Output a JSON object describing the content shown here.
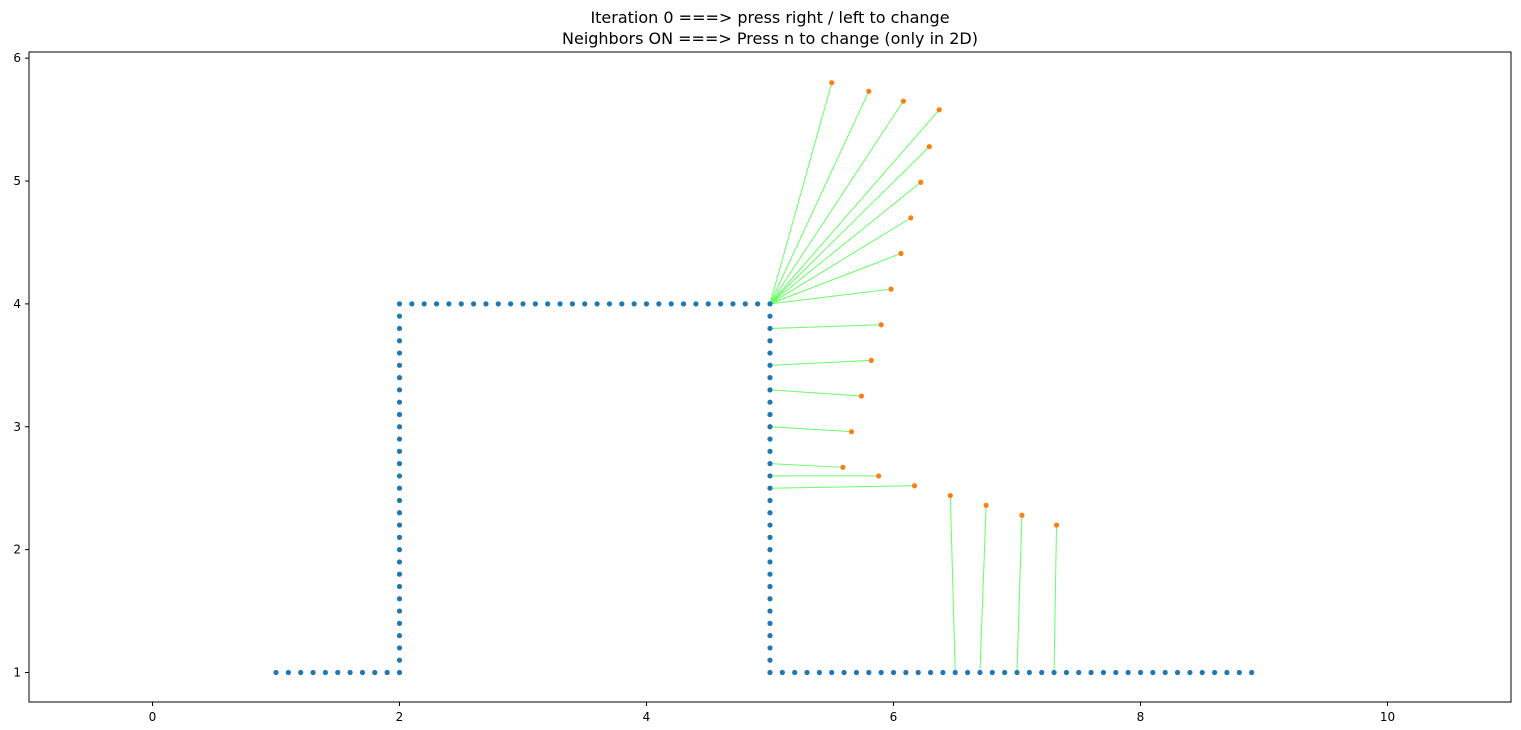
{
  "title_lines": [
    "Iteration 0 ===> press right / left to change",
    "Neighbors ON ===> Press n to change (only in 2D)"
  ],
  "chart_data": {
    "type": "scatter",
    "title": "Iteration 0 ===> press right / left to change\nNeighbors ON ===> Press n to change (only in 2D)",
    "xlabel": "",
    "ylabel": "",
    "xlim": [
      -1.0,
      11.0
    ],
    "ylim": [
      0.76,
      6.05
    ],
    "xticks": [
      0,
      2,
      4,
      6,
      8,
      10
    ],
    "yticks": [
      1,
      2,
      3,
      4,
      5,
      6
    ],
    "grid": false,
    "colors": {
      "reference": "#1f77b4",
      "moving": "#ff7f0e",
      "neighbor_line": "#66ff66"
    },
    "series": [
      {
        "name": "reference",
        "segments": [
          {
            "from": [
              1.0,
              1.0
            ],
            "to": [
              1.9,
              1.0
            ],
            "step": 0.1
          },
          {
            "from": [
              2.0,
              1.0
            ],
            "to": [
              2.0,
              4.0
            ],
            "step": 0.1
          },
          {
            "from": [
              2.1,
              4.0
            ],
            "to": [
              4.9,
              4.0
            ],
            "step": 0.1
          },
          {
            "from": [
              5.0,
              4.0
            ],
            "to": [
              5.0,
              1.0
            ],
            "step": 0.1
          },
          {
            "from": [
              5.1,
              1.0
            ],
            "to": [
              8.9,
              1.0
            ],
            "step": 0.1
          }
        ]
      },
      {
        "name": "moving",
        "points": [
          [
            5.5,
            5.8
          ],
          [
            5.8,
            5.73
          ],
          [
            6.08,
            5.65
          ],
          [
            6.37,
            5.58
          ],
          [
            6.29,
            5.28
          ],
          [
            6.22,
            4.99
          ],
          [
            6.14,
            4.7
          ],
          [
            6.06,
            4.41
          ],
          [
            5.98,
            4.12
          ],
          [
            5.9,
            3.83
          ],
          [
            5.82,
            3.54
          ],
          [
            5.74,
            3.25
          ],
          [
            5.66,
            2.96
          ],
          [
            5.59,
            2.67
          ],
          [
            5.88,
            2.6
          ],
          [
            6.17,
            2.52
          ],
          [
            6.46,
            2.44
          ],
          [
            6.75,
            2.36
          ],
          [
            7.04,
            2.28
          ],
          [
            7.32,
            2.2
          ]
        ]
      }
    ],
    "neighbor_links": [
      {
        "from": [
          5.5,
          5.8
        ],
        "to": [
          5.0,
          4.0
        ]
      },
      {
        "from": [
          5.8,
          5.73
        ],
        "to": [
          5.0,
          4.0
        ]
      },
      {
        "from": [
          6.08,
          5.65
        ],
        "to": [
          5.0,
          4.0
        ]
      },
      {
        "from": [
          6.37,
          5.58
        ],
        "to": [
          5.0,
          4.0
        ]
      },
      {
        "from": [
          6.29,
          5.28
        ],
        "to": [
          5.0,
          4.0
        ]
      },
      {
        "from": [
          6.22,
          4.99
        ],
        "to": [
          5.0,
          4.0
        ]
      },
      {
        "from": [
          6.14,
          4.7
        ],
        "to": [
          5.0,
          4.0
        ]
      },
      {
        "from": [
          6.06,
          4.41
        ],
        "to": [
          5.0,
          4.0
        ]
      },
      {
        "from": [
          5.98,
          4.12
        ],
        "to": [
          5.0,
          4.0
        ]
      },
      {
        "from": [
          5.9,
          3.83
        ],
        "to": [
          5.0,
          3.8
        ]
      },
      {
        "from": [
          5.82,
          3.54
        ],
        "to": [
          5.0,
          3.5
        ]
      },
      {
        "from": [
          5.74,
          3.25
        ],
        "to": [
          5.0,
          3.3
        ]
      },
      {
        "from": [
          5.66,
          2.96
        ],
        "to": [
          5.0,
          3.0
        ]
      },
      {
        "from": [
          5.59,
          2.67
        ],
        "to": [
          5.0,
          2.7
        ]
      },
      {
        "from": [
          5.88,
          2.6
        ],
        "to": [
          5.0,
          2.6
        ]
      },
      {
        "from": [
          6.17,
          2.52
        ],
        "to": [
          5.0,
          2.5
        ]
      },
      {
        "from": [
          6.46,
          2.44
        ],
        "to": [
          6.5,
          1.0
        ]
      },
      {
        "from": [
          6.75,
          2.36
        ],
        "to": [
          6.7,
          1.0
        ]
      },
      {
        "from": [
          7.04,
          2.28
        ],
        "to": [
          7.0,
          1.0
        ]
      },
      {
        "from": [
          7.32,
          2.2
        ],
        "to": [
          7.3,
          1.0
        ]
      }
    ]
  }
}
